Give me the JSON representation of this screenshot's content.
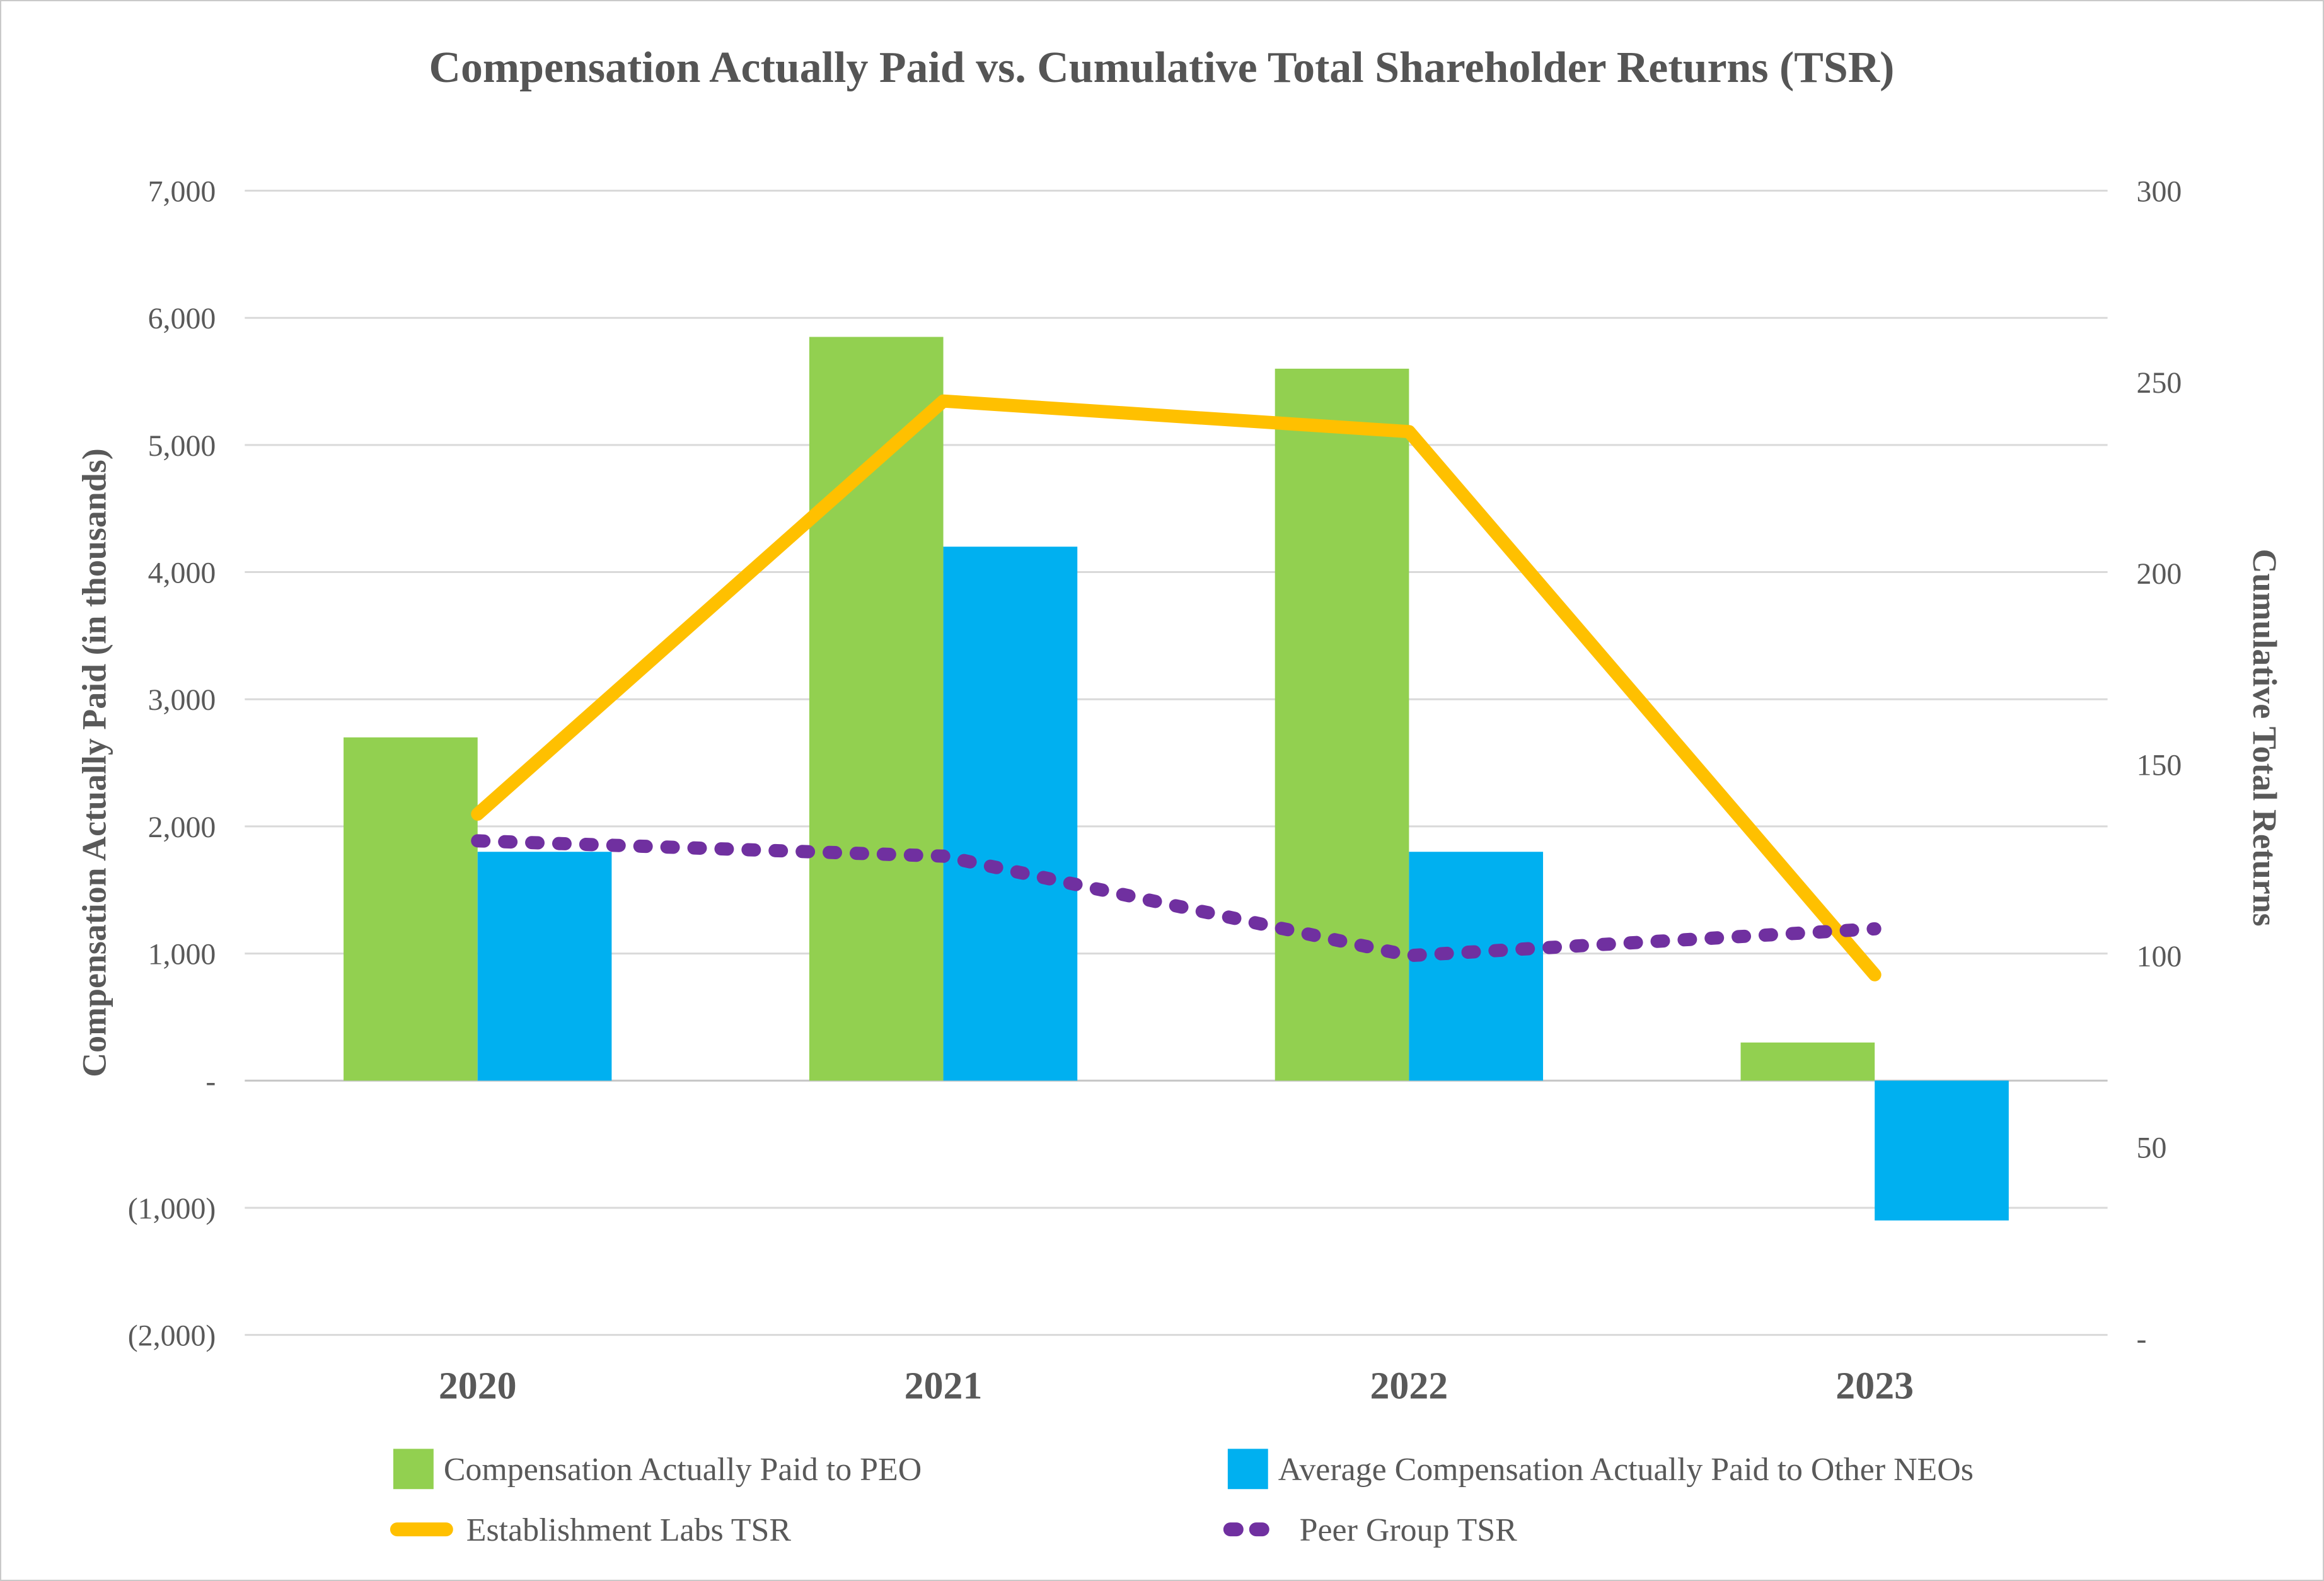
{
  "title": "Compensation Actually Paid vs. Cumulative Total Shareholder Returns (TSR)",
  "chart_data": {
    "type": "bar",
    "subtype": "combo-bar-line-dual-axis",
    "categories": [
      "2020",
      "2021",
      "2022",
      "2023"
    ],
    "series": [
      {
        "name": "Compensation Actually Paid to PEO",
        "type": "bar",
        "axis": "left",
        "color": "#92D050",
        "values": [
          2700,
          5850,
          5600,
          300
        ]
      },
      {
        "name": "Average Compensation Actually Paid to Other NEOs",
        "type": "bar",
        "axis": "left",
        "color": "#00B0F0",
        "values": [
          1800,
          4200,
          1800,
          -1100
        ]
      },
      {
        "name": "Establishment Labs TSR",
        "type": "line",
        "axis": "right",
        "color": "#FFC000",
        "style": "solid",
        "values": [
          137,
          245,
          237,
          95
        ]
      },
      {
        "name": "Peer Group TSR",
        "type": "line",
        "axis": "right",
        "color": "#7030A0",
        "style": "dashed",
        "values": [
          130,
          126,
          100,
          107
        ]
      }
    ],
    "left_axis": {
      "title": "Compensation Actually Paid (in thousands)",
      "min": -2000,
      "max": 7000,
      "step": 1000,
      "tick_values": [
        7000,
        6000,
        5000,
        4000,
        3000,
        2000,
        1000,
        0,
        -1000,
        -2000
      ],
      "tick_labels": [
        "7,000",
        "6,000",
        "5,000",
        "4,000",
        "3,000",
        "2,000",
        "1,000",
        "-",
        "(1,000)",
        "(2,000)"
      ]
    },
    "right_axis": {
      "title": "Cumulative Total Returns",
      "min": 0,
      "max": 300,
      "step": 50,
      "tick_values": [
        300,
        250,
        200,
        150,
        100,
        50,
        0
      ],
      "tick_labels": [
        "300",
        "250",
        "200",
        "150",
        "100",
        "50",
        "-"
      ]
    },
    "grid": true,
    "legend_position": "bottom",
    "colors": {
      "gridline": "#D9D9D9",
      "zero_line": "#C6C6C6",
      "text": "#595959"
    }
  }
}
